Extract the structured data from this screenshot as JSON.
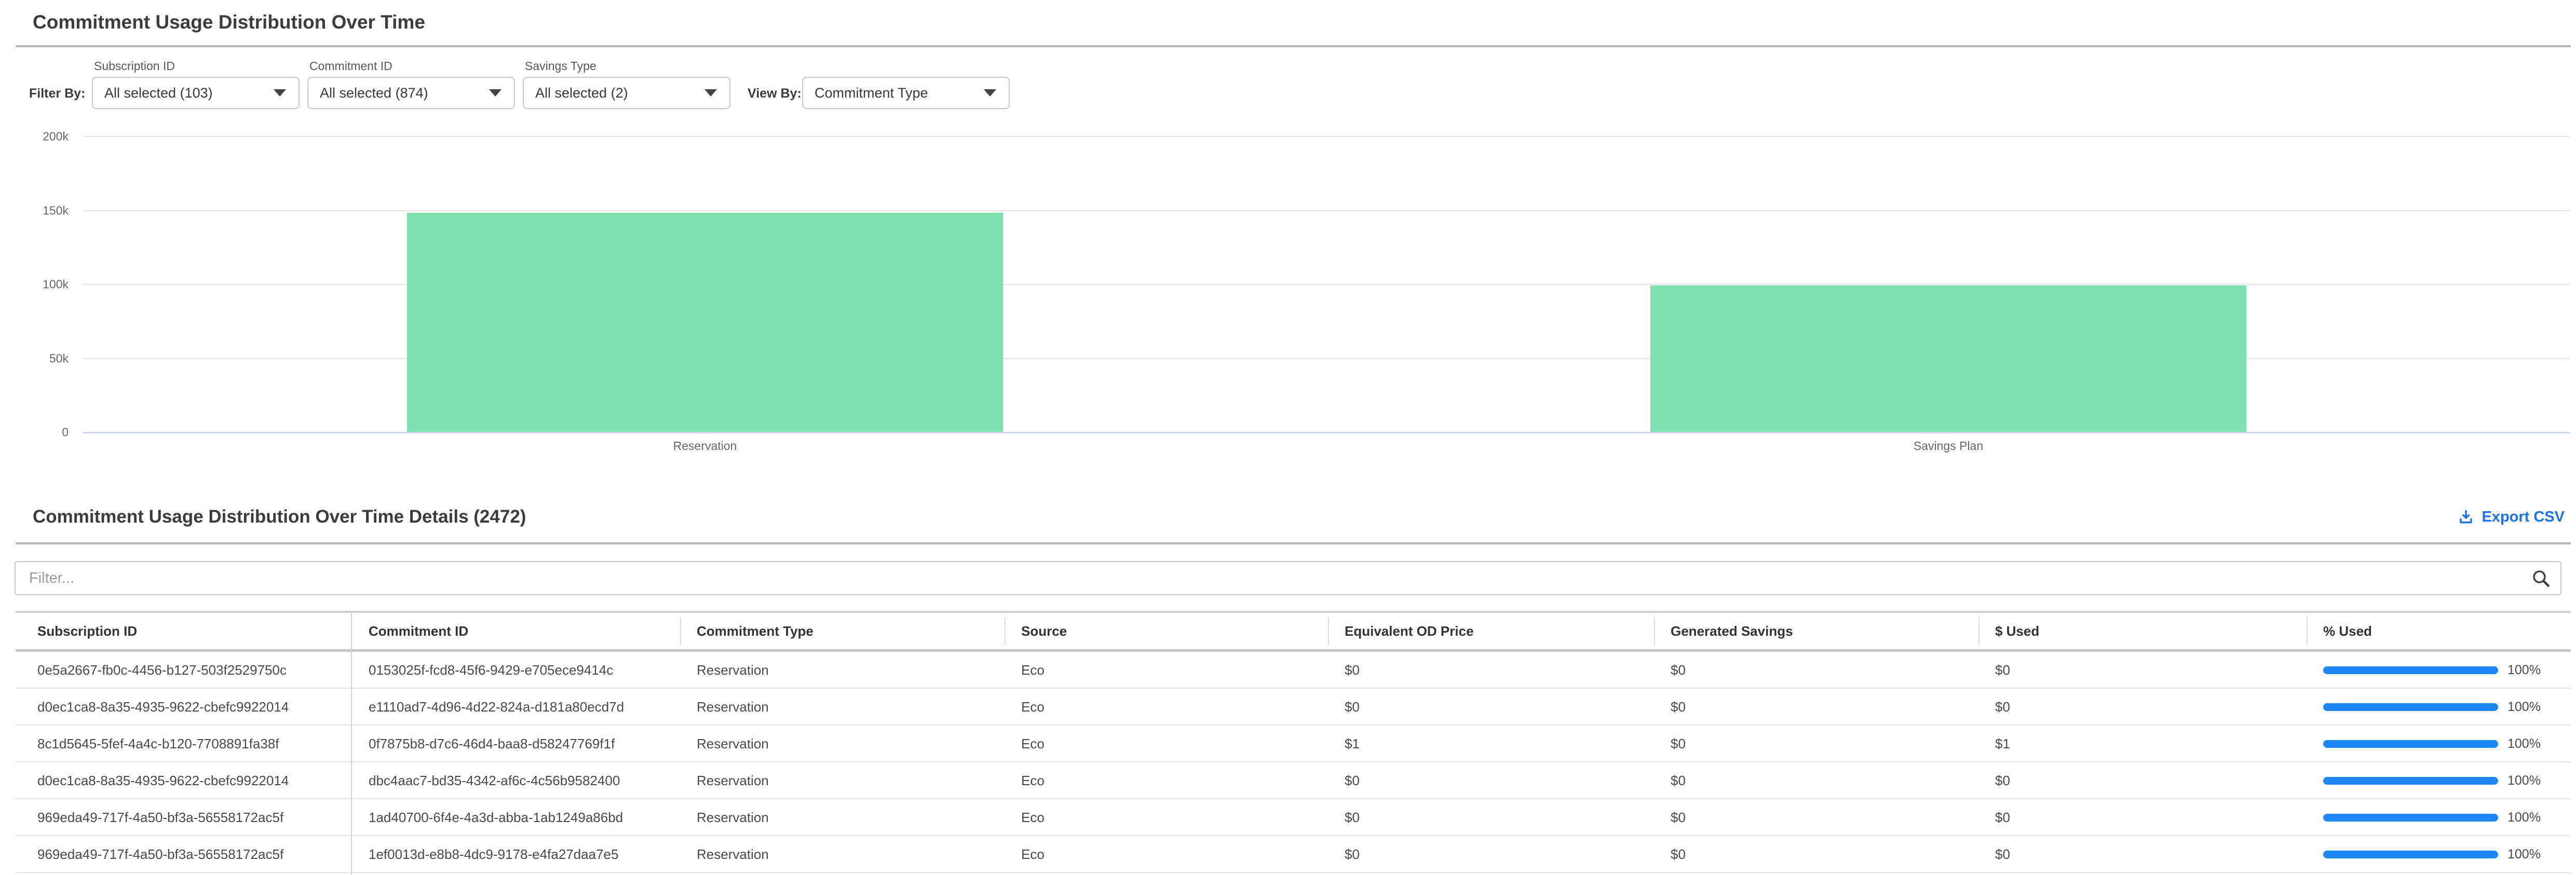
{
  "header": {
    "title": "Commitment Usage Distribution Over Time"
  },
  "filters": {
    "filter_by_label": "Filter By:",
    "view_by_label": "View By:",
    "dropdowns": [
      {
        "label": "Subscription ID",
        "value": "All selected (103)"
      },
      {
        "label": "Commitment ID",
        "value": "All selected (874)"
      },
      {
        "label": "Savings Type",
        "value": "All selected (2)"
      }
    ],
    "view_by_value": "Commitment Type"
  },
  "chart_data": {
    "type": "bar",
    "title": "Commitment Usage Distribution Over Time",
    "categories": [
      "Reservation",
      "Savings Plan"
    ],
    "values": [
      148000,
      99000
    ],
    "xlabel": "",
    "ylabel": "",
    "ylim": [
      0,
      200000
    ],
    "ytick_labels": [
      "0",
      "50k",
      "100k",
      "150k",
      "200k"
    ],
    "grid": true,
    "legend": "none",
    "bar_color": "#7de1b0"
  },
  "details": {
    "title": "Commitment Usage Distribution Over Time Details (2472)",
    "export_label": "Export CSV",
    "filter_placeholder": "Filter..."
  },
  "table": {
    "columns": [
      "Subscription ID",
      "Commitment ID",
      "Commitment Type",
      "Source",
      "Equivalent OD Price",
      "Generated Savings",
      "$ Used",
      "% Used"
    ],
    "rows": [
      {
        "subscription_id": "0e5a2667-fb0c-4456-b127-503f2529750c",
        "commitment_id": "0153025f-fcd8-45f6-9429-e705ece9414c",
        "commitment_type": "Reservation",
        "source": "Eco",
        "equivalent_od_price": "$0",
        "generated_savings": "$0",
        "used": "$0",
        "pct_used": "100%",
        "pct_value": 100
      },
      {
        "subscription_id": "d0ec1ca8-8a35-4935-9622-cbefc9922014",
        "commitment_id": "e1110ad7-4d96-4d22-824a-d181a80ecd7d",
        "commitment_type": "Reservation",
        "source": "Eco",
        "equivalent_od_price": "$0",
        "generated_savings": "$0",
        "used": "$0",
        "pct_used": "100%",
        "pct_value": 100
      },
      {
        "subscription_id": "8c1d5645-5fef-4a4c-b120-7708891fa38f",
        "commitment_id": "0f7875b8-d7c6-46d4-baa8-d58247769f1f",
        "commitment_type": "Reservation",
        "source": "Eco",
        "equivalent_od_price": "$1",
        "generated_savings": "$0",
        "used": "$1",
        "pct_used": "100%",
        "pct_value": 100
      },
      {
        "subscription_id": "d0ec1ca8-8a35-4935-9622-cbefc9922014",
        "commitment_id": "dbc4aac7-bd35-4342-af6c-4c56b9582400",
        "commitment_type": "Reservation",
        "source": "Eco",
        "equivalent_od_price": "$0",
        "generated_savings": "$0",
        "used": "$0",
        "pct_used": "100%",
        "pct_value": 100
      },
      {
        "subscription_id": "969eda49-717f-4a50-bf3a-56558172ac5f",
        "commitment_id": "1ad40700-6f4e-4a3d-abba-1ab1249a86bd",
        "commitment_type": "Reservation",
        "source": "Eco",
        "equivalent_od_price": "$0",
        "generated_savings": "$0",
        "used": "$0",
        "pct_used": "100%",
        "pct_value": 100
      },
      {
        "subscription_id": "969eda49-717f-4a50-bf3a-56558172ac5f",
        "commitment_id": "1ef0013d-e8b8-4dc9-9178-e4fa27daa7e5",
        "commitment_type": "Reservation",
        "source": "Eco",
        "equivalent_od_price": "$0",
        "generated_savings": "$0",
        "used": "$0",
        "pct_used": "100%",
        "pct_value": 100
      }
    ]
  },
  "colors": {
    "accent_blue": "#1a73e8",
    "progress_blue": "#1e87f6",
    "bar_green": "#7de1b0",
    "divider_gray": "#b9b9b9"
  }
}
